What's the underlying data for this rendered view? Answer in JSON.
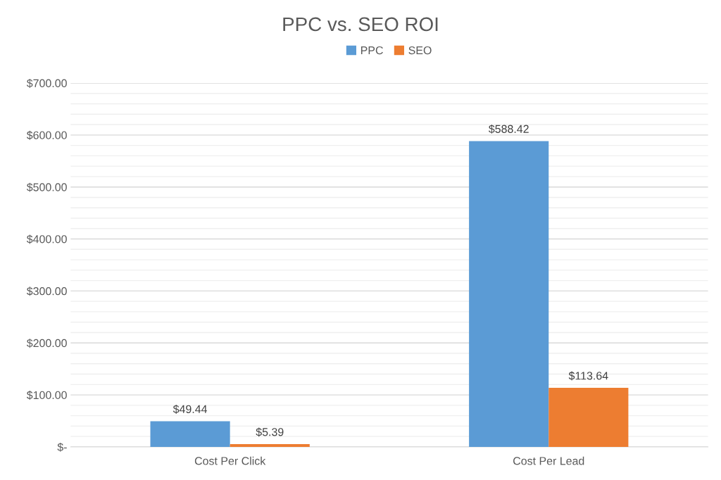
{
  "chart_data": {
    "type": "bar",
    "title": "PPC vs. SEO ROI",
    "categories": [
      "Cost Per Click",
      "Cost Per Lead"
    ],
    "series": [
      {
        "name": "PPC",
        "color": "#5b9bd5",
        "values": [
          49.44,
          588.42
        ],
        "value_labels": [
          "$49.44",
          "$588.42"
        ]
      },
      {
        "name": "SEO",
        "color": "#ed7d31",
        "values": [
          5.39,
          113.64
        ],
        "value_labels": [
          "$5.39",
          "$113.64"
        ]
      }
    ],
    "ylim": [
      0,
      700
    ],
    "yticks": [
      {
        "value": 0,
        "label": "$-"
      },
      {
        "value": 20,
        "label": null
      },
      {
        "value": 40,
        "label": null
      },
      {
        "value": 60,
        "label": null
      },
      {
        "value": 80,
        "label": null
      },
      {
        "value": 100,
        "label": "$100.00"
      },
      {
        "value": 120,
        "label": null
      },
      {
        "value": 140,
        "label": null
      },
      {
        "value": 160,
        "label": null
      },
      {
        "value": 180,
        "label": null
      },
      {
        "value": 200,
        "label": "$200.00"
      },
      {
        "value": 220,
        "label": null
      },
      {
        "value": 240,
        "label": null
      },
      {
        "value": 260,
        "label": null
      },
      {
        "value": 280,
        "label": null
      },
      {
        "value": 300,
        "label": "$300.00"
      },
      {
        "value": 320,
        "label": null
      },
      {
        "value": 340,
        "label": null
      },
      {
        "value": 360,
        "label": null
      },
      {
        "value": 380,
        "label": null
      },
      {
        "value": 400,
        "label": "$400.00"
      },
      {
        "value": 420,
        "label": null
      },
      {
        "value": 440,
        "label": null
      },
      {
        "value": 460,
        "label": null
      },
      {
        "value": 480,
        "label": null
      },
      {
        "value": 500,
        "label": "$500.00"
      },
      {
        "value": 520,
        "label": null
      },
      {
        "value": 540,
        "label": null
      },
      {
        "value": 560,
        "label": null
      },
      {
        "value": 580,
        "label": null
      },
      {
        "value": 600,
        "label": "$600.00"
      },
      {
        "value": 620,
        "label": null
      },
      {
        "value": 640,
        "label": null
      },
      {
        "value": 660,
        "label": null
      },
      {
        "value": 680,
        "label": null
      },
      {
        "value": 700,
        "label": "$700.00"
      }
    ],
    "grid": "y",
    "legend": "top"
  }
}
